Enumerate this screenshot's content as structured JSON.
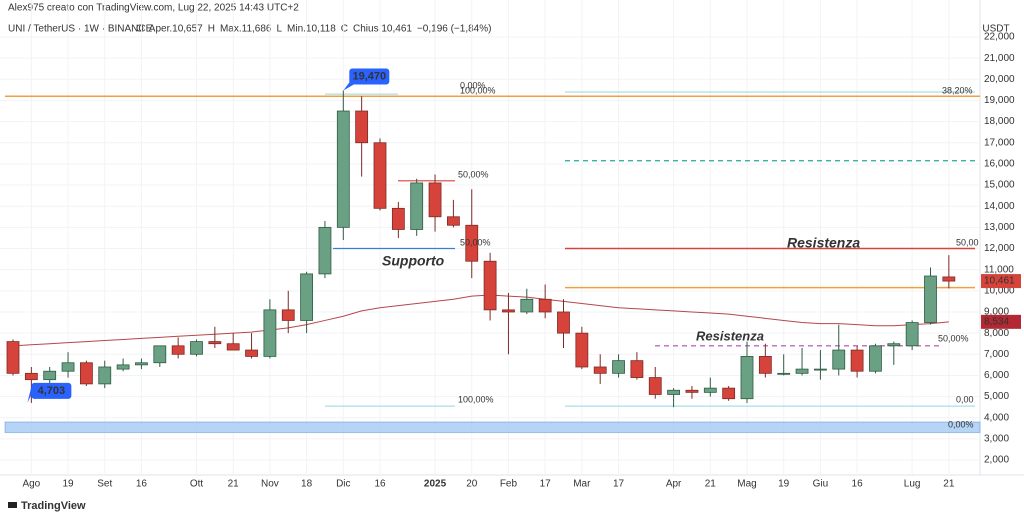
{
  "header": {
    "author": "Alex975 creato con TradingView.com, Lug 22, 2025 14:43 UTC+2",
    "symbol": "UNI / TetherUS · 1W · BINANCE",
    "legend": [
      "O",
      "Aper.10,657",
      "H",
      "Max.11,686",
      "L",
      "Min.10,118",
      "C",
      "Chius.10,461",
      "−0,196 (−1,84%)"
    ]
  },
  "chart_data": {
    "type": "candlestick",
    "currency": "USDT",
    "categories": [
      null,
      "Ago",
      null,
      "19",
      null,
      "Set",
      null,
      "16",
      null,
      null,
      "Ott",
      null,
      "21",
      null,
      "Nov",
      null,
      "18",
      null,
      "Dic",
      null,
      "16",
      null,
      null,
      "2025",
      null,
      "20",
      null,
      "Feb",
      null,
      "17",
      null,
      "Mar",
      null,
      "17",
      null,
      null,
      "Apr",
      null,
      "21",
      null,
      "Mag",
      null,
      "19",
      null,
      "Giu",
      null,
      "16",
      null,
      null,
      "Lug",
      null,
      "21"
    ],
    "open": [
      7600,
      6100,
      5800,
      6200,
      6600,
      5600,
      6300,
      6500,
      6600,
      7400,
      7000,
      7600,
      7500,
      7200,
      6900,
      9100,
      8600,
      10800,
      13000,
      18500,
      17000,
      13900,
      12900,
      15100,
      13500,
      13100,
      11400,
      9100,
      9000,
      9600,
      9000,
      8000,
      6400,
      6100,
      6700,
      5900,
      5100,
      5300,
      5200,
      5400,
      4900,
      6900,
      6100,
      6100,
      6300,
      6300,
      7200,
      6200,
      7400,
      7400,
      8500,
      10657
    ],
    "high": [
      7700,
      6400,
      6400,
      7100,
      6700,
      6700,
      6800,
      6800,
      7400,
      7800,
      7700,
      8300,
      8000,
      8000,
      9600,
      10000,
      10900,
      13300,
      19470,
      19200,
      17200,
      14200,
      15300,
      15500,
      14300,
      14800,
      11800,
      9900,
      10100,
      10300,
      9600,
      8300,
      7000,
      7000,
      7100,
      6400,
      5400,
      5500,
      5900,
      5500,
      7600,
      7500,
      7000,
      7300,
      7200,
      8400,
      7400,
      7500,
      7600,
      8600,
      11100,
      11686
    ],
    "low": [
      6000,
      4703,
      5600,
      5900,
      5500,
      5400,
      6200,
      6300,
      6400,
      6800,
      6900,
      7300,
      7200,
      6800,
      6800,
      8000,
      8000,
      10600,
      12400,
      15400,
      13800,
      12500,
      12600,
      12800,
      13000,
      10600,
      8600,
      7000,
      8900,
      8700,
      7300,
      6300,
      5600,
      5900,
      5800,
      4900,
      4500,
      4900,
      5000,
      4800,
      4700,
      5900,
      6000,
      6000,
      5800,
      6000,
      5900,
      6100,
      6500,
      7200,
      8400,
      10118
    ],
    "close": [
      6100,
      5800,
      6200,
      6600,
      5600,
      6400,
      6500,
      6600,
      7400,
      7000,
      7600,
      7500,
      7200,
      6900,
      9100,
      8600,
      10800,
      13000,
      18500,
      17000,
      13900,
      12900,
      15100,
      13500,
      13100,
      11400,
      9100,
      9000,
      9600,
      9000,
      8000,
      6400,
      6100,
      6700,
      5900,
      5100,
      5300,
      5200,
      5400,
      4900,
      6900,
      6100,
      6100,
      6300,
      6300,
      7200,
      6200,
      7400,
      7500,
      8500,
      10700,
      10461
    ],
    "up_color": "#6aa084",
    "down_color": "#d6433b",
    "moving_average": {
      "color": "#b5474b",
      "values": [
        7400,
        7450,
        7500,
        7550,
        7600,
        7650,
        7700,
        7750,
        7800,
        7850,
        7900,
        7950,
        8000,
        8050,
        8150,
        8250,
        8400,
        8600,
        8800,
        9050,
        9200,
        9300,
        9400,
        9500,
        9600,
        9750,
        9800,
        9750,
        9700,
        9600,
        9500,
        9400,
        9300,
        9200,
        9150,
        9100,
        9050,
        9000,
        8950,
        8900,
        8800,
        8700,
        8600,
        8500,
        8450,
        8450,
        8400,
        8350,
        8350,
        8400,
        8450,
        8534
      ]
    },
    "ylim": [
      1530,
      22330
    ],
    "yticks": [
      {
        "value": 2000,
        "label": "2,000"
      },
      {
        "value": 3000,
        "label": "3,000"
      },
      {
        "value": 4000,
        "label": "4,000"
      },
      {
        "value": 5000,
        "label": "5,000"
      },
      {
        "value": 6000,
        "label": "6,000"
      },
      {
        "value": 7000,
        "label": "7,000"
      },
      {
        "value": 8000,
        "label": "8,000"
      },
      {
        "value": 9000,
        "label": "9,000"
      },
      {
        "value": 10000,
        "label": "10,000"
      },
      {
        "value": 11000,
        "label": "11,000"
      },
      {
        "value": 12000,
        "label": "12,000"
      },
      {
        "value": 13000,
        "label": "13,000"
      },
      {
        "value": 14000,
        "label": "14,000"
      },
      {
        "value": 15000,
        "label": "15,000"
      },
      {
        "value": 16000,
        "label": "16,000"
      },
      {
        "value": 17000,
        "label": "17,000"
      },
      {
        "value": 18000,
        "label": "18,000"
      },
      {
        "value": 19000,
        "label": "19,000"
      },
      {
        "value": 20000,
        "label": "20,000"
      },
      {
        "value": 21000,
        "label": "21,000"
      },
      {
        "value": 22000,
        "label": "22,000"
      }
    ],
    "price_labels": [
      {
        "value": 10461,
        "label": "10,461",
        "color": "#d6433b"
      },
      {
        "value": 8534,
        "label": "8,534",
        "color": "#b22833"
      }
    ],
    "callouts": [
      {
        "value": 19470,
        "label": "19,470"
      },
      {
        "value": 4703,
        "label": "4,703"
      }
    ],
    "levels": [
      {
        "value": 19200,
        "color": "#f0a040"
      },
      {
        "value": 19300,
        "color": "#a8dde8"
      },
      {
        "value": 19400,
        "color": "#a8dde8"
      },
      {
        "value": 16150,
        "color": "#26a69a"
      },
      {
        "value": 15200,
        "color": "#d6433b"
      },
      {
        "value": 12000,
        "color": "#3a7bd5"
      },
      {
        "value": 12000,
        "color": "#d6433b"
      },
      {
        "value": 10150,
        "color": "#f0a040"
      },
      {
        "value": 7400,
        "color": "#b04ab0"
      },
      {
        "value": 4550,
        "color": "#a8dde8"
      },
      {
        "value": 4550,
        "color": "#a8dde8"
      }
    ],
    "band": {
      "from": 3300,
      "to": 3800,
      "color": "#a9cdf3"
    },
    "annotations": [
      {
        "text": "0,00%",
        "color": "#9ed8e4"
      },
      {
        "text": "100,00%",
        "color": "#9ed8e4"
      },
      {
        "text": "50,00%",
        "color": "#d6433b"
      },
      {
        "text": "50,00%",
        "color": "#5b9bd5"
      },
      {
        "text": "100,00%",
        "color": "#9ed8e4"
      },
      {
        "text": "38,20%",
        "color": "#f0a040"
      },
      {
        "text": "50,00",
        "color": "#d6433b"
      },
      {
        "text": "50,00%",
        "color": "#b04ab0"
      },
      {
        "text": "0,00",
        "color": "#9ed8e4"
      },
      {
        "text": "0,00%",
        "color": "#8ab4d8"
      },
      {
        "text": "Supporto",
        "color": "#3a7bd5"
      },
      {
        "text": "Resistenza",
        "color": "#d6433b"
      },
      {
        "text": "Resistenza",
        "color": "#b04ab0"
      }
    ]
  },
  "footer": "TradingView"
}
